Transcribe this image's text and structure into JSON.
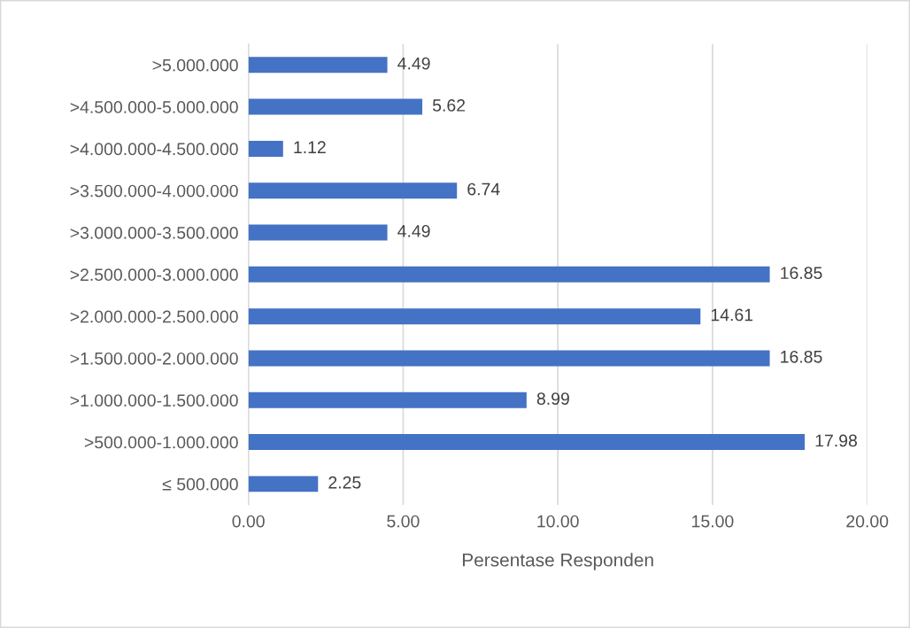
{
  "chart_data": {
    "type": "bar",
    "orientation": "horizontal",
    "xlabel": "Persentase Responden",
    "categories": [
      ">5.000.000",
      ">4.500.000-5.000.000",
      ">4.000.000-4.500.000",
      ">3.500.000-4.000.000",
      ">3.000.000-3.500.000",
      ">2.500.000-3.000.000",
      ">2.000.000-2.500.000",
      ">1.500.000-2.000.000",
      ">1.000.000-1.500.000",
      ">500.000-1.000.000",
      "≤ 500.000"
    ],
    "values": [
      4.49,
      5.62,
      1.12,
      6.74,
      4.49,
      16.85,
      14.61,
      16.85,
      8.99,
      17.98,
      2.25
    ],
    "color": "#4472c4",
    "xlim": [
      0,
      20
    ],
    "xticks": [
      {
        "value": 0,
        "label": "0.00"
      },
      {
        "value": 5,
        "label": "5.00"
      },
      {
        "value": 10,
        "label": "10.00"
      },
      {
        "value": 15,
        "label": "15.00"
      },
      {
        "value": 20,
        "label": "20.00"
      }
    ],
    "grid": "x",
    "data_labels": true
  }
}
